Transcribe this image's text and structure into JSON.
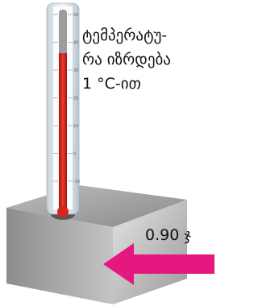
{
  "caption": {
    "lines": [
      "ტემპერატუ-",
      "რა იზრდება",
      "1 °C-ით"
    ]
  },
  "energy_label": "0.90 ჯ",
  "scale": {
    "labels": [
      "50",
      "40",
      "30",
      "20",
      "10",
      "0",
      "-10"
    ]
  }
}
